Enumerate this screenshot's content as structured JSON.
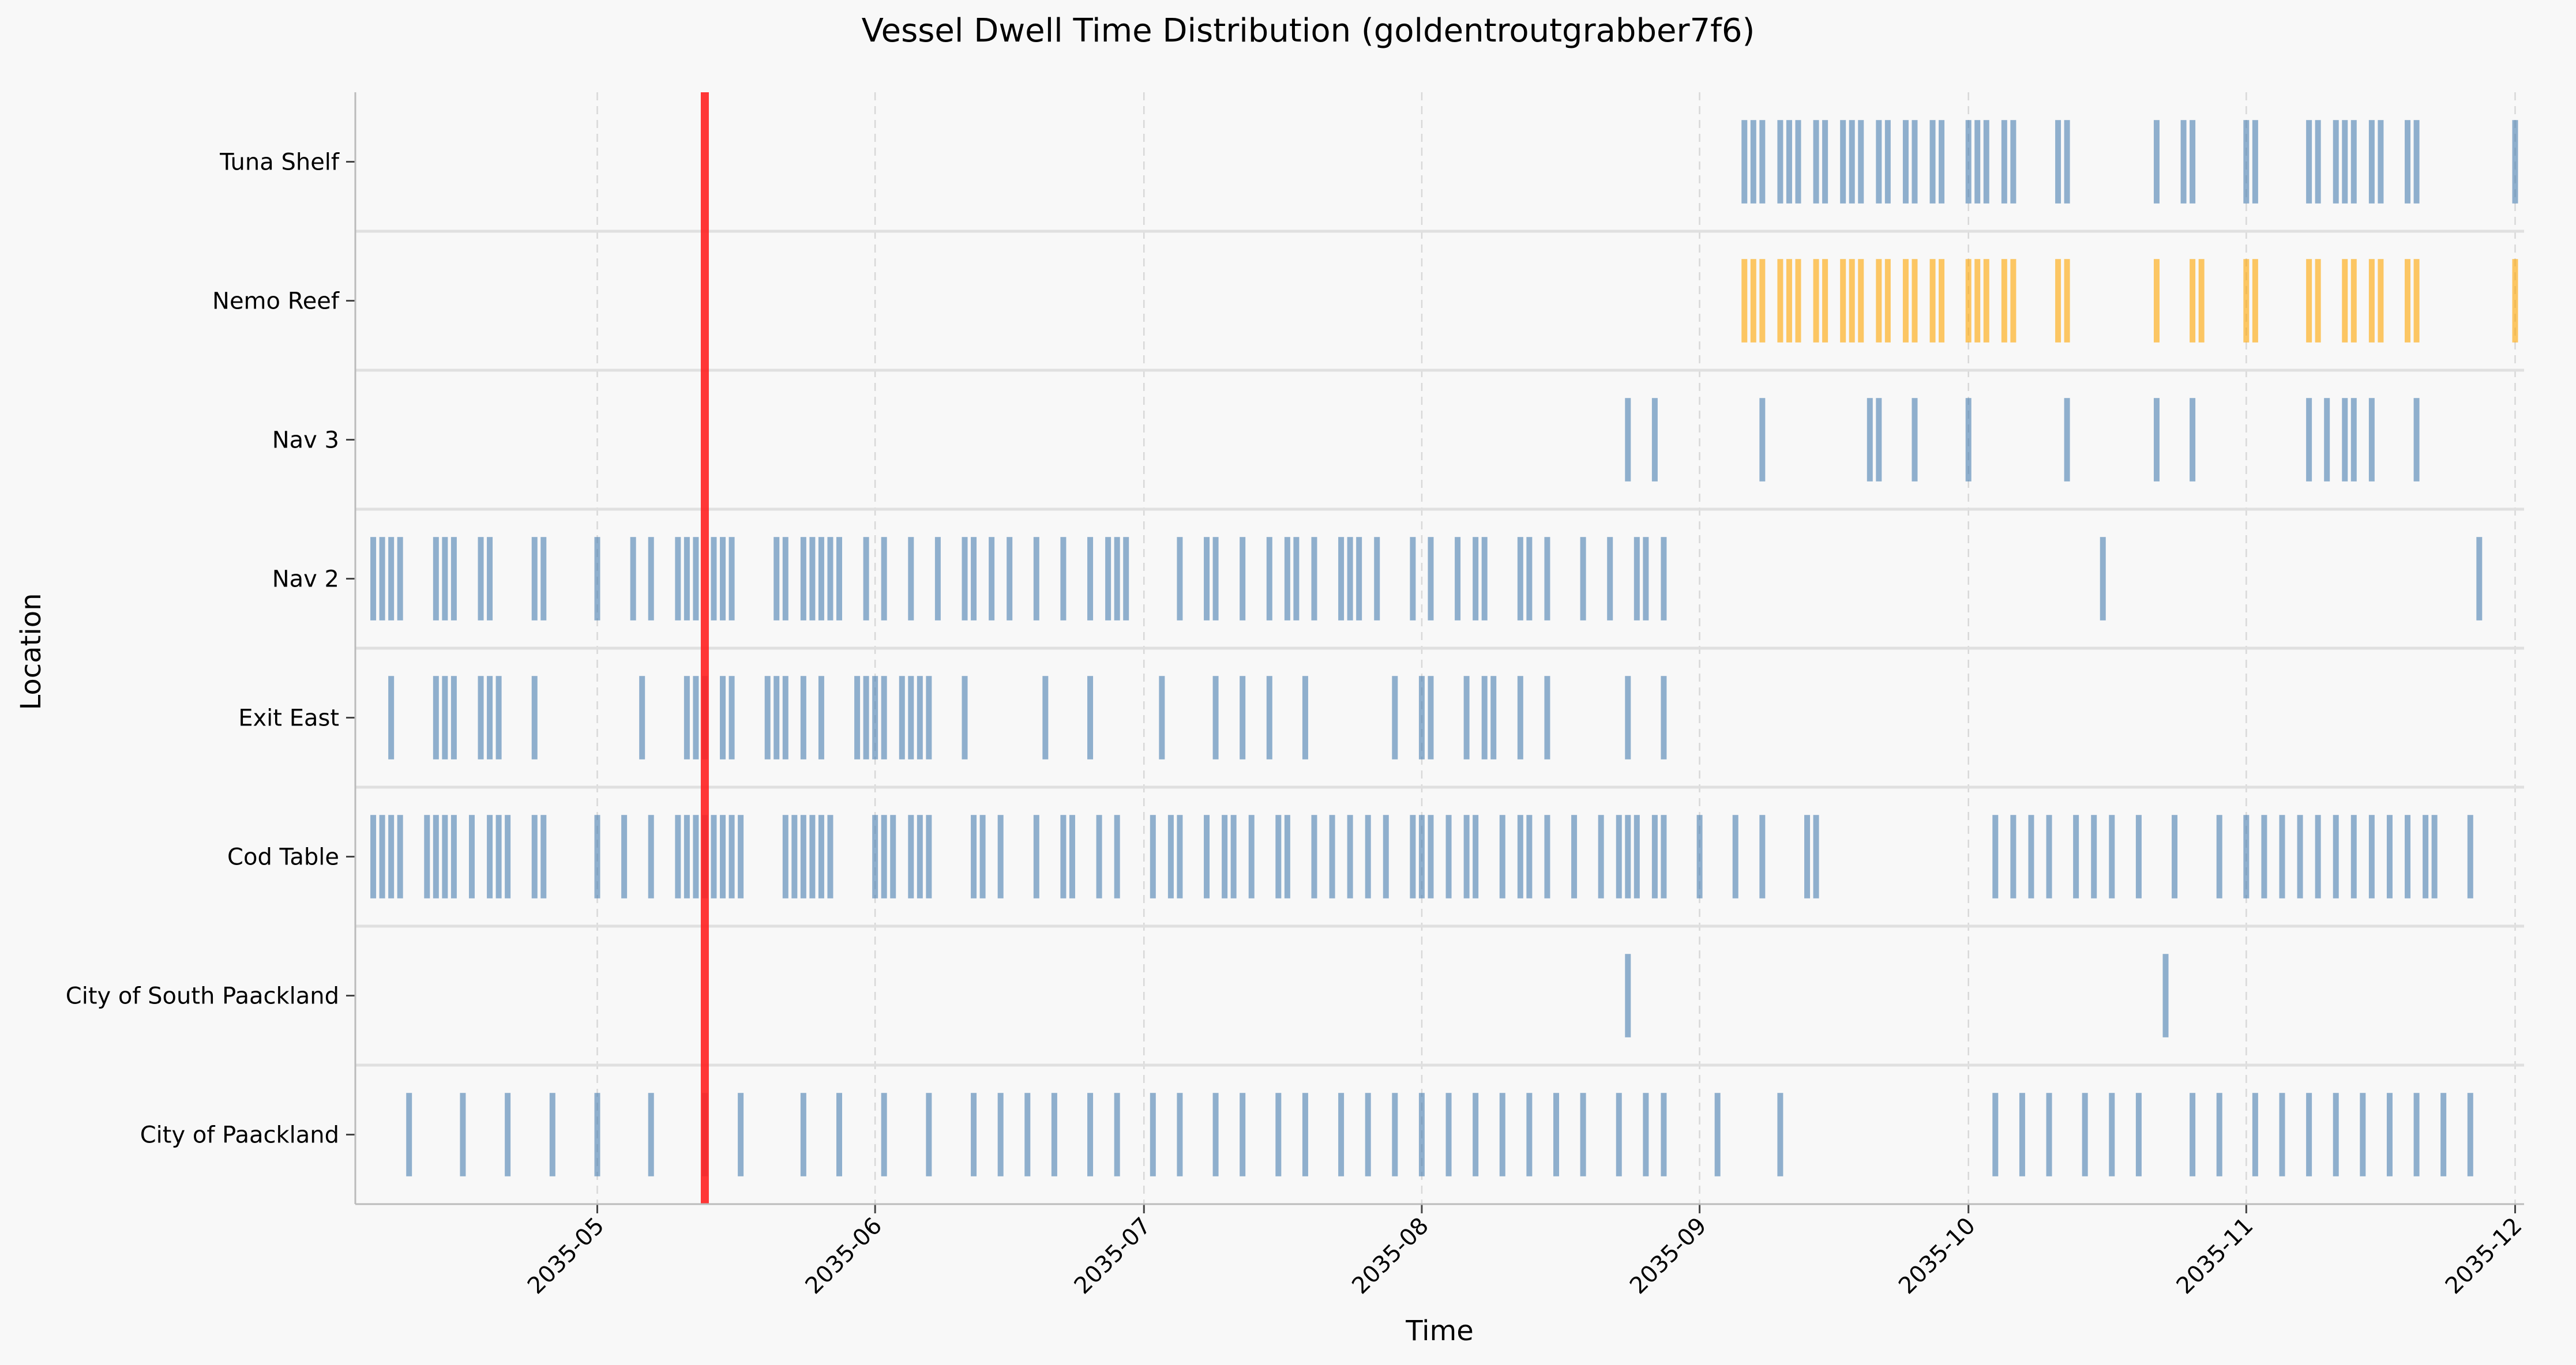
{
  "chart_data": {
    "type": "timeline",
    "title": "Vessel Dwell Time Distribution (goldentroutgrabber7f6)",
    "xlabel": "Time",
    "ylabel": "Location",
    "x_range": [
      "2035-04-04",
      "2035-12-02"
    ],
    "x_ticks": [
      "2035-05",
      "2035-06",
      "2035-07",
      "2035-08",
      "2035-09",
      "2035-10",
      "2035-11",
      "2035-12"
    ],
    "grid": "dashed vertical at ticks, solid band separators",
    "legend": "none",
    "colors": {
      "default": "#4a7fb0",
      "highlight": "#ffa500",
      "marker": "#ff2020",
      "background": "#f8f8f8"
    },
    "marker_line": {
      "date": "2035-05-13"
    },
    "categories": [
      "City of Paackland",
      "City of South Paackland",
      "Cod Table",
      "Exit East",
      "Nav 2",
      "Nav 3",
      "Nemo Reef",
      "Tuna Shelf"
    ],
    "series": [
      {
        "location": "City of Paackland",
        "color": "default",
        "events": [
          "2035-04-10",
          "2035-04-16",
          "2035-04-21",
          "2035-04-26",
          "2035-05-01",
          "2035-05-07",
          "2035-05-13",
          "2035-05-17",
          "2035-05-24",
          "2035-05-28",
          "2035-06-02",
          "2035-06-07",
          "2035-06-12",
          "2035-06-15",
          "2035-06-18",
          "2035-06-21",
          "2035-06-25",
          "2035-06-28",
          "2035-07-02",
          "2035-07-05",
          "2035-07-09",
          "2035-07-12",
          "2035-07-16",
          "2035-07-19",
          "2035-07-23",
          "2035-07-26",
          "2035-07-29",
          "2035-08-01",
          "2035-08-04",
          "2035-08-07",
          "2035-08-10",
          "2035-08-13",
          "2035-08-16",
          "2035-08-19",
          "2035-08-23",
          "2035-08-26",
          "2035-08-28",
          "2035-09-03",
          "2035-09-10",
          "2035-10-04",
          "2035-10-07",
          "2035-10-10",
          "2035-10-14",
          "2035-10-17",
          "2035-10-20",
          "2035-10-26",
          "2035-10-29",
          "2035-11-02",
          "2035-11-05",
          "2035-11-08",
          "2035-11-11",
          "2035-11-14",
          "2035-11-17",
          "2035-11-20",
          "2035-11-23",
          "2035-11-26"
        ]
      },
      {
        "location": "City of South Paackland",
        "color": "default",
        "events": [
          "2035-08-24",
          "2035-10-23"
        ]
      },
      {
        "location": "Cod Table",
        "color": "default",
        "events": [
          "2035-04-06",
          "2035-04-07",
          "2035-04-08",
          "2035-04-09",
          "2035-04-12",
          "2035-04-13",
          "2035-04-14",
          "2035-04-15",
          "2035-04-17",
          "2035-04-19",
          "2035-04-20",
          "2035-04-21",
          "2035-04-24",
          "2035-04-25",
          "2035-05-01",
          "2035-05-04",
          "2035-05-07",
          "2035-05-10",
          "2035-05-11",
          "2035-05-12",
          "2035-05-13",
          "2035-05-14",
          "2035-05-15",
          "2035-05-16",
          "2035-05-17",
          "2035-05-22",
          "2035-05-23",
          "2035-05-24",
          "2035-05-25",
          "2035-05-26",
          "2035-05-27",
          "2035-06-01",
          "2035-06-02",
          "2035-06-03",
          "2035-06-05",
          "2035-06-06",
          "2035-06-07",
          "2035-06-12",
          "2035-06-13",
          "2035-06-15",
          "2035-06-19",
          "2035-06-22",
          "2035-06-23",
          "2035-06-26",
          "2035-06-28",
          "2035-07-02",
          "2035-07-04",
          "2035-07-05",
          "2035-07-08",
          "2035-07-10",
          "2035-07-11",
          "2035-07-13",
          "2035-07-16",
          "2035-07-17",
          "2035-07-20",
          "2035-07-22",
          "2035-07-24",
          "2035-07-26",
          "2035-07-28",
          "2035-07-31",
          "2035-08-01",
          "2035-08-02",
          "2035-08-04",
          "2035-08-06",
          "2035-08-07",
          "2035-08-10",
          "2035-08-12",
          "2035-08-13",
          "2035-08-15",
          "2035-08-18",
          "2035-08-21",
          "2035-08-23",
          "2035-08-24",
          "2035-08-25",
          "2035-08-27",
          "2035-08-28",
          "2035-09-01",
          "2035-09-05",
          "2035-09-08",
          "2035-09-13",
          "2035-09-14",
          "2035-10-04",
          "2035-10-06",
          "2035-10-08",
          "2035-10-10",
          "2035-10-13",
          "2035-10-15",
          "2035-10-17",
          "2035-10-20",
          "2035-10-24",
          "2035-10-29",
          "2035-11-01",
          "2035-11-03",
          "2035-11-05",
          "2035-11-07",
          "2035-11-09",
          "2035-11-11",
          "2035-11-13",
          "2035-11-15",
          "2035-11-17",
          "2035-11-19",
          "2035-11-21",
          "2035-11-22",
          "2035-11-26"
        ]
      },
      {
        "location": "Exit East",
        "color": "default",
        "events": [
          "2035-04-08",
          "2035-04-13",
          "2035-04-14",
          "2035-04-15",
          "2035-04-18",
          "2035-04-19",
          "2035-04-20",
          "2035-04-24",
          "2035-05-06",
          "2035-05-11",
          "2035-05-12",
          "2035-05-13",
          "2035-05-15",
          "2035-05-16",
          "2035-05-20",
          "2035-05-21",
          "2035-05-22",
          "2035-05-24",
          "2035-05-26",
          "2035-05-30",
          "2035-05-31",
          "2035-06-01",
          "2035-06-02",
          "2035-06-04",
          "2035-06-05",
          "2035-06-06",
          "2035-06-07",
          "2035-06-11",
          "2035-06-20",
          "2035-06-25",
          "2035-07-03",
          "2035-07-09",
          "2035-07-12",
          "2035-07-15",
          "2035-07-19",
          "2035-07-29",
          "2035-08-01",
          "2035-08-02",
          "2035-08-06",
          "2035-08-08",
          "2035-08-09",
          "2035-08-12",
          "2035-08-15",
          "2035-08-24",
          "2035-08-28"
        ]
      },
      {
        "location": "Nav 2",
        "color": "default",
        "events": [
          "2035-04-06",
          "2035-04-07",
          "2035-04-08",
          "2035-04-09",
          "2035-04-13",
          "2035-04-14",
          "2035-04-15",
          "2035-04-18",
          "2035-04-19",
          "2035-04-24",
          "2035-04-25",
          "2035-05-01",
          "2035-05-05",
          "2035-05-07",
          "2035-05-10",
          "2035-05-11",
          "2035-05-12",
          "2035-05-14",
          "2035-05-15",
          "2035-05-16",
          "2035-05-21",
          "2035-05-22",
          "2035-05-24",
          "2035-05-25",
          "2035-05-26",
          "2035-05-27",
          "2035-05-28",
          "2035-05-31",
          "2035-06-02",
          "2035-06-05",
          "2035-06-08",
          "2035-06-11",
          "2035-06-12",
          "2035-06-14",
          "2035-06-16",
          "2035-06-19",
          "2035-06-22",
          "2035-06-25",
          "2035-06-27",
          "2035-06-28",
          "2035-06-29",
          "2035-07-05",
          "2035-07-08",
          "2035-07-09",
          "2035-07-12",
          "2035-07-15",
          "2035-07-17",
          "2035-07-18",
          "2035-07-20",
          "2035-07-23",
          "2035-07-24",
          "2035-07-25",
          "2035-07-27",
          "2035-07-31",
          "2035-08-02",
          "2035-08-05",
          "2035-08-07",
          "2035-08-08",
          "2035-08-12",
          "2035-08-13",
          "2035-08-15",
          "2035-08-19",
          "2035-08-22",
          "2035-08-25",
          "2035-08-26",
          "2035-08-28",
          "2035-10-16",
          "2035-11-27"
        ]
      },
      {
        "location": "Nav 3",
        "color": "default",
        "events": [
          "2035-08-24",
          "2035-08-27",
          "2035-09-08",
          "2035-09-20",
          "2035-09-21",
          "2035-09-25",
          "2035-10-01",
          "2035-10-12",
          "2035-10-22",
          "2035-10-26",
          "2035-11-08",
          "2035-11-10",
          "2035-11-12",
          "2035-11-13",
          "2035-11-15",
          "2035-11-20"
        ]
      },
      {
        "location": "Nemo Reef",
        "color": "highlight",
        "events": [
          "2035-09-06",
          "2035-09-07",
          "2035-09-08",
          "2035-09-10",
          "2035-09-11",
          "2035-09-12",
          "2035-09-14",
          "2035-09-15",
          "2035-09-17",
          "2035-09-18",
          "2035-09-19",
          "2035-09-21",
          "2035-09-22",
          "2035-09-24",
          "2035-09-25",
          "2035-09-27",
          "2035-09-28",
          "2035-10-01",
          "2035-10-02",
          "2035-10-03",
          "2035-10-05",
          "2035-10-06",
          "2035-10-11",
          "2035-10-12",
          "2035-10-22",
          "2035-10-26",
          "2035-10-27",
          "2035-11-01",
          "2035-11-02",
          "2035-11-08",
          "2035-11-09",
          "2035-11-12",
          "2035-11-13",
          "2035-11-15",
          "2035-11-16",
          "2035-11-19",
          "2035-11-20",
          "2035-12-01"
        ]
      },
      {
        "location": "Tuna Shelf",
        "color": "default",
        "events": [
          "2035-09-06",
          "2035-09-07",
          "2035-09-08",
          "2035-09-10",
          "2035-09-11",
          "2035-09-12",
          "2035-09-14",
          "2035-09-15",
          "2035-09-17",
          "2035-09-18",
          "2035-09-19",
          "2035-09-21",
          "2035-09-22",
          "2035-09-24",
          "2035-09-25",
          "2035-09-27",
          "2035-09-28",
          "2035-10-01",
          "2035-10-02",
          "2035-10-03",
          "2035-10-05",
          "2035-10-06",
          "2035-10-11",
          "2035-10-12",
          "2035-10-22",
          "2035-10-25",
          "2035-10-26",
          "2035-11-01",
          "2035-11-02",
          "2035-11-08",
          "2035-11-09",
          "2035-11-11",
          "2035-11-12",
          "2035-11-13",
          "2035-11-15",
          "2035-11-16",
          "2035-11-19",
          "2035-11-20",
          "2035-12-01"
        ]
      }
    ]
  }
}
